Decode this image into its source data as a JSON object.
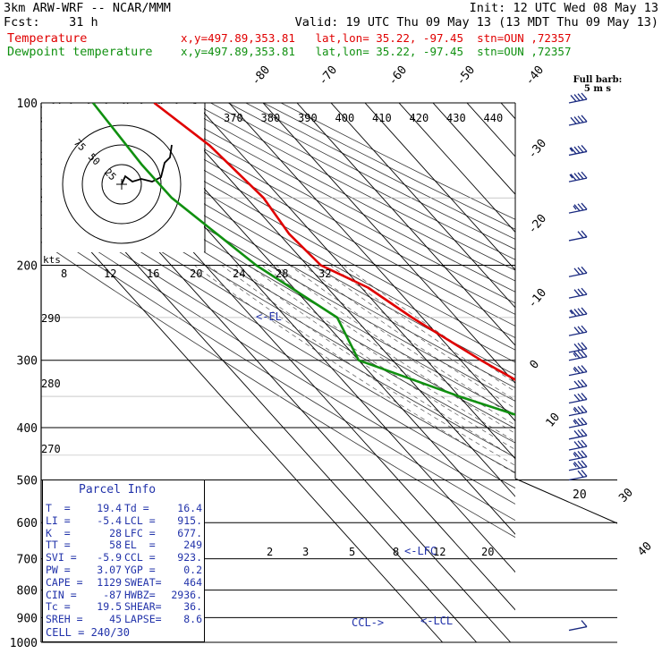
{
  "header": {
    "line1_left": "3km ARW-WRF -- NCAR/MMM",
    "line1_right": "Init: 12 UTC Wed 08 May 13",
    "line2_left": "Fcst:    31 h",
    "line2_right": "Valid: 19 UTC Thu 09 May 13 (13 MDT Thu 09 May 13)",
    "temp_label": "Temperature",
    "temp_info": "x,y=497.89,353.81   lat,lon= 35.22, -97.45  stn=OUN ,72357",
    "dew_label": "Dewpoint temperature",
    "dew_info": "x,y=497.89,353.81   lat,lon= 35.22, -97.45  stn=OUN ,72357"
  },
  "barb_legend": {
    "line1": "Full barb:",
    "line2": "5 m s"
  },
  "parcel_info": {
    "title": "Parcel Info",
    "rows": [
      [
        "T  =",
        "19.4",
        "Td =",
        "16.4"
      ],
      [
        "LI =",
        "-5.4",
        "LCL =",
        "915."
      ],
      [
        "K  =",
        "28",
        "LFC =",
        "677."
      ],
      [
        "TT =",
        "58",
        "EL  =",
        "249"
      ],
      [
        "SVI =",
        "-5.9",
        "CCL =",
        "923."
      ],
      [
        "PW =",
        "3.07",
        "YGP =",
        "0.2"
      ],
      [
        "CAPE =",
        "1129",
        "SWEAT=",
        "464"
      ],
      [
        "CIN =",
        "-87",
        "HWBZ=",
        "2936."
      ],
      [
        "Tc =",
        "19.5",
        "SHEAR=",
        "36."
      ],
      [
        "SREH =",
        "45",
        "LAPSE=",
        "8.6"
      ]
    ],
    "cell": "CELL = 240/30"
  },
  "hodograph": {
    "units_label": "kts",
    "ring_labels": [
      "75",
      "50",
      "25"
    ]
  },
  "markers": {
    "el": "<-EL",
    "lfc": "<-LFC",
    "lcl": "<-LCL",
    "ccl": "CCL->"
  },
  "colors": {
    "temperature": "#e00000",
    "dewpoint": "#109010",
    "axes": "#000000",
    "barbs": "#1a2a80",
    "markers": "#2233aa"
  },
  "chart_data": {
    "type": "line",
    "chart_kind": "skew-T log-P diagram",
    "y_axis": {
      "label": "",
      "scale": "log",
      "ticks": [
        100,
        200,
        300,
        400,
        500,
        600,
        700,
        800,
        900,
        1000
      ],
      "range": [
        100,
        1000
      ]
    },
    "isotherm_labels": [
      "-80",
      "-70",
      "-60",
      "-50",
      "-40",
      "-30",
      "-20",
      "-10",
      "0",
      "10",
      "20",
      "30",
      "40"
    ],
    "theta_e_labels": [
      "370",
      "380",
      "390",
      "400",
      "410",
      "420",
      "430",
      "440"
    ],
    "theta_labels": [
      "290",
      "280",
      "270"
    ],
    "mixing_ratio_labels": [
      "2",
      "3",
      "5",
      "8",
      "12",
      "20"
    ],
    "hodo_speed_labels": [
      "8",
      "12",
      "16",
      "20",
      "24",
      "28",
      "32"
    ],
    "series": [
      {
        "name": "Temperature",
        "points": [
          [
            100,
            -62
          ],
          [
            120,
            -57
          ],
          [
            150,
            -55
          ],
          [
            175,
            -57
          ],
          [
            200,
            -56
          ],
          [
            220,
            -48
          ],
          [
            250,
            -43
          ],
          [
            300,
            -34
          ],
          [
            400,
            -17
          ],
          [
            500,
            -8
          ],
          [
            600,
            0
          ],
          [
            700,
            7
          ],
          [
            750,
            12
          ],
          [
            800,
            14
          ],
          [
            850,
            15
          ],
          [
            900,
            17
          ],
          [
            970,
            19.4
          ]
        ]
      },
      {
        "name": "Dewpoint temperature",
        "points": [
          [
            100,
            -80
          ],
          [
            130,
            -82
          ],
          [
            150,
            -82
          ],
          [
            200,
            -75
          ],
          [
            250,
            -65
          ],
          [
            300,
            -70
          ],
          [
            350,
            -50
          ],
          [
            400,
            -30
          ],
          [
            450,
            -24
          ],
          [
            500,
            -20
          ],
          [
            550,
            -10
          ],
          [
            600,
            -5
          ],
          [
            650,
            -6
          ],
          [
            700,
            -6
          ],
          [
            800,
            11
          ],
          [
            850,
            14
          ],
          [
            900,
            15
          ],
          [
            970,
            16.4
          ]
        ]
      }
    ],
    "wind_barbs_kts": [
      [
        100,
        40
      ],
      [
        110,
        40
      ],
      [
        125,
        35
      ],
      [
        140,
        35
      ],
      [
        160,
        25
      ],
      [
        180,
        20
      ],
      [
        210,
        30
      ],
      [
        230,
        30
      ],
      [
        250,
        35
      ],
      [
        270,
        30
      ],
      [
        290,
        30
      ],
      [
        300,
        25
      ],
      [
        320,
        25
      ],
      [
        340,
        30
      ],
      [
        360,
        30
      ],
      [
        380,
        25
      ],
      [
        400,
        25
      ],
      [
        420,
        30
      ],
      [
        440,
        30
      ],
      [
        460,
        25
      ],
      [
        480,
        25
      ],
      [
        500,
        20
      ],
      [
        950,
        10
      ]
    ]
  }
}
